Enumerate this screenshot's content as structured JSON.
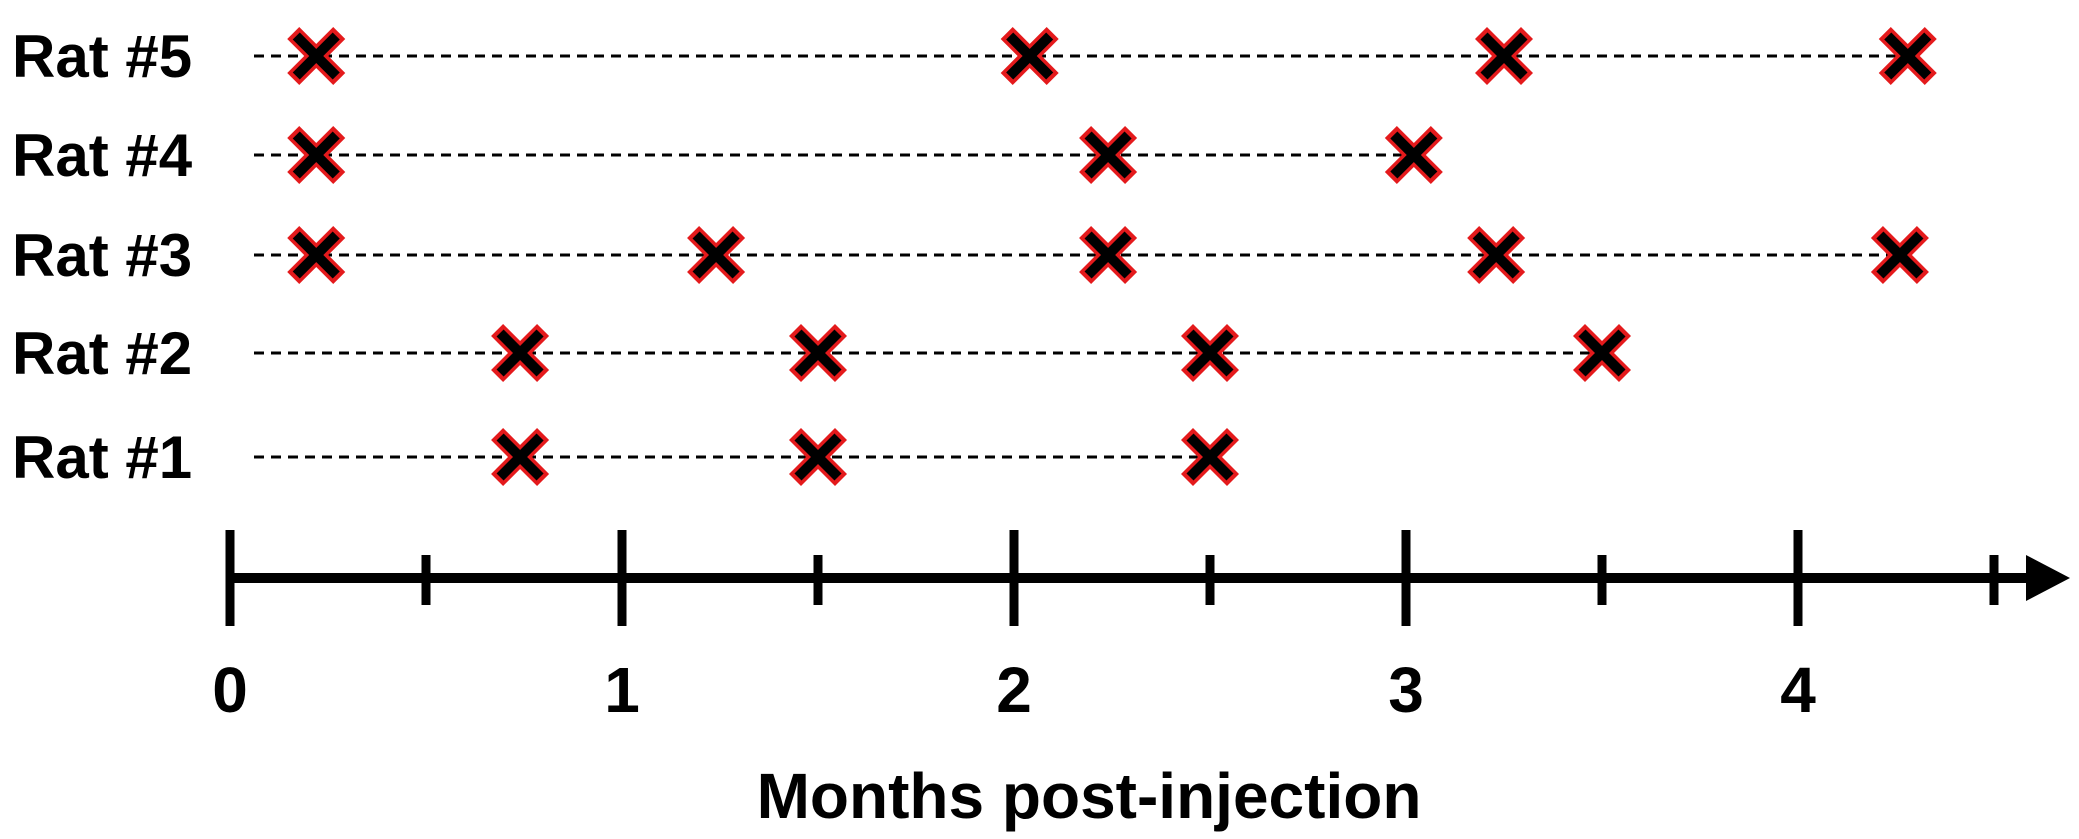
{
  "chart_data": {
    "type": "scatter",
    "xlabel": "Months post-injection",
    "xlim": [
      0,
      4.5
    ],
    "x_ticks_major": [
      0,
      1,
      2,
      3,
      4
    ],
    "x_ticks_minor": [
      0.5,
      1.5,
      2.5,
      3.5,
      4.5
    ],
    "tick_labels": [
      "0",
      "1",
      "2",
      "3",
      "4"
    ],
    "grid": false,
    "axis_arrow": true,
    "marker": "x",
    "marker_color": "#000000",
    "marker_outline_color": "#e41a1c",
    "series": [
      {
        "name": "Rat #5",
        "x": [
          0.22,
          2.04,
          3.25,
          4.28
        ]
      },
      {
        "name": "Rat #4",
        "x": [
          0.22,
          2.24,
          3.02
        ]
      },
      {
        "name": "Rat #3",
        "x": [
          0.22,
          1.24,
          2.24,
          3.23,
          4.26
        ]
      },
      {
        "name": "Rat #2",
        "x": [
          0.74,
          1.5,
          2.5,
          3.5
        ]
      },
      {
        "name": "Rat #1",
        "x": [
          0.74,
          1.5,
          2.5
        ]
      }
    ]
  }
}
